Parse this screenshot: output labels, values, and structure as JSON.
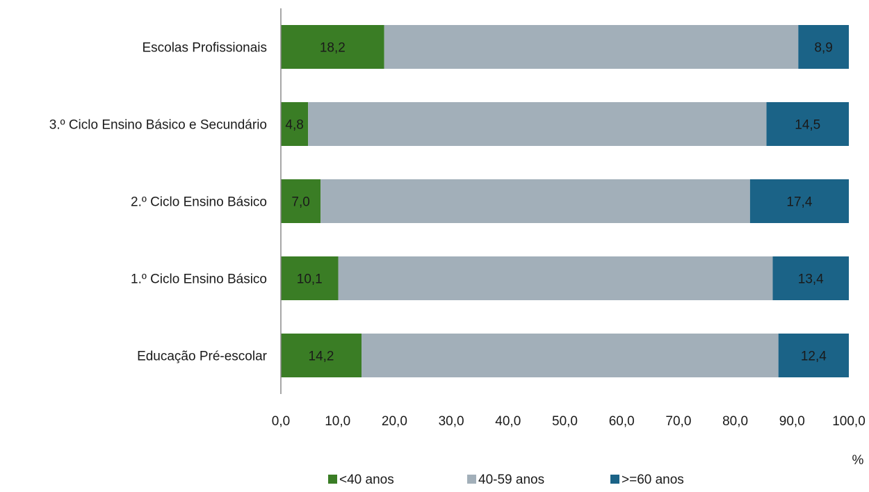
{
  "chart_data": {
    "type": "bar",
    "orientation": "horizontal",
    "stacked": true,
    "title": "",
    "xlabel": "%",
    "ylabel": "",
    "xlim": [
      0,
      100
    ],
    "x_ticks": [
      "0,0",
      "10,0",
      "20,0",
      "30,0",
      "40,0",
      "50,0",
      "60,0",
      "70,0",
      "80,0",
      "90,0",
      "100,0"
    ],
    "categories": [
      "Escolas Profissionais",
      "3.º Ciclo Ensino Básico e Secundário",
      "2.º Ciclo Ensino Básico",
      "1.º Ciclo Ensino Básico",
      "Educação Pré-escolar"
    ],
    "series": [
      {
        "name": "<40 anos",
        "color": "#3a7d25",
        "values": [
          18.2,
          4.8,
          7.0,
          10.1,
          14.2
        ],
        "labels": [
          "18,2",
          "4,8",
          "7,0",
          "10,1",
          "14,2"
        ],
        "show_labels": true
      },
      {
        "name": "40-59 anos",
        "color": "#a2afb9",
        "values": [
          72.9,
          80.7,
          75.6,
          76.5,
          73.4
        ],
        "show_labels": false
      },
      {
        "name": ">=60 anos",
        "color": "#1b6387",
        "values": [
          8.9,
          14.5,
          17.4,
          13.4,
          12.4
        ],
        "labels": [
          "8,9",
          "14,5",
          "17,4",
          "13,4",
          "12,4"
        ],
        "show_labels": true
      }
    ],
    "grid": false,
    "legend_position": "bottom"
  }
}
